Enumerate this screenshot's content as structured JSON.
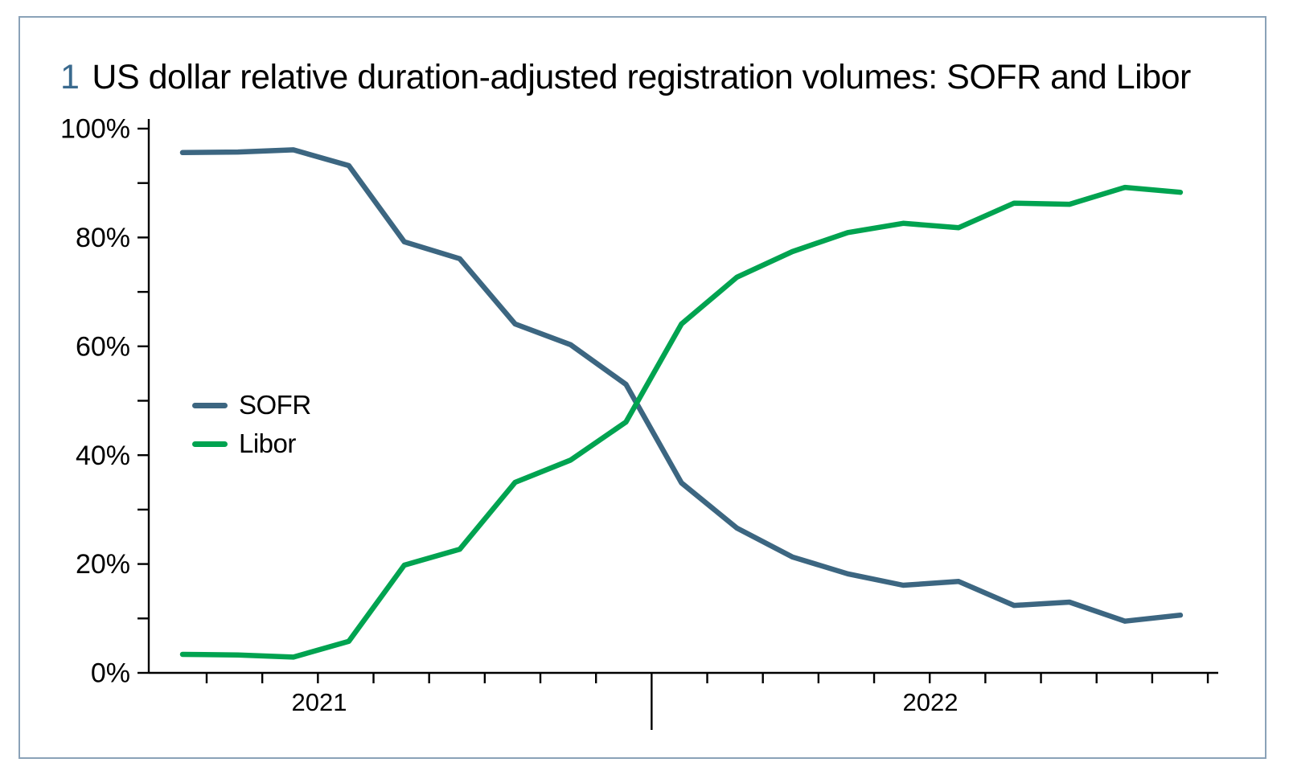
{
  "title": {
    "number": "1",
    "text": "US dollar relative duration-adjusted registration volumes: SOFR and Libor"
  },
  "legend": {
    "items": [
      {
        "label": "SOFR",
        "color": "#3c6681"
      },
      {
        "label": "Libor",
        "color": "#00a350"
      }
    ]
  },
  "colors": {
    "axis": "#000000",
    "card_border": "#8aa2b8",
    "title_number": "#3a6a8e"
  },
  "chart_data": {
    "type": "line",
    "title": "US dollar relative duration-adjusted registration volumes: SOFR and Libor",
    "xlabel": "",
    "ylabel": "",
    "ylim": [
      0,
      100
    ],
    "y_tick_step_minor": 10,
    "y_tick_step_labeled": 20,
    "y_tick_labels": [
      "0%",
      "20%",
      "40%",
      "60%",
      "80%",
      "100%"
    ],
    "x_tick_labels": [
      "2021",
      "2022"
    ],
    "x_minor_tick_count": 19,
    "grid": false,
    "legend_position": "middle-left",
    "series": [
      {
        "name": "SOFR",
        "color": "#3c6681",
        "values": [
          95.6,
          95.7,
          96.1,
          93.2,
          79.2,
          76.1,
          64.1,
          60.3,
          53.0,
          34.9,
          26.6,
          21.3,
          18.2,
          16.1,
          16.8,
          12.4,
          13.0,
          9.5,
          10.6
        ]
      },
      {
        "name": "Libor",
        "color": "#00a350",
        "values": [
          3.4,
          3.3,
          2.9,
          5.8,
          19.8,
          22.7,
          35.0,
          39.1,
          46.1,
          64.1,
          72.7,
          77.4,
          80.9,
          82.6,
          81.8,
          86.3,
          86.1,
          89.2,
          88.3
        ]
      }
    ]
  }
}
